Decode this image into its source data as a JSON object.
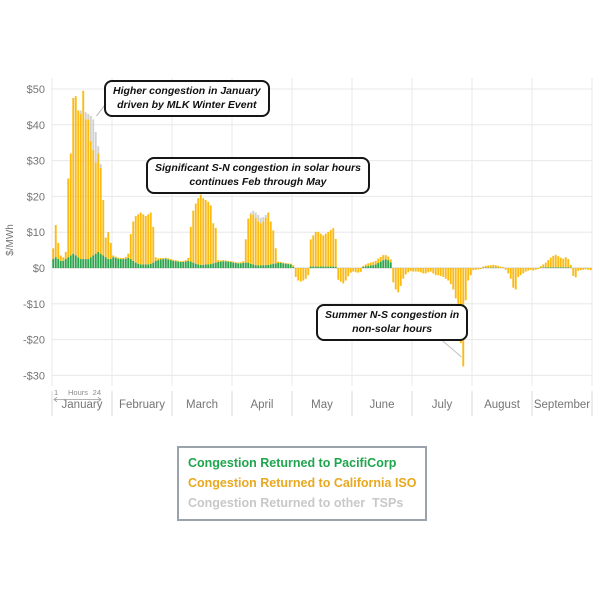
{
  "chart_data": {
    "type": "bar",
    "stacked": true,
    "title": "",
    "ylabel": "$/MWh",
    "ylim": [
      -30,
      50
    ],
    "grid": true,
    "y_ticks": [
      {
        "label": "$50",
        "value": 50
      },
      {
        "label": "$40",
        "value": 40
      },
      {
        "label": "$30",
        "value": 30
      },
      {
        "label": "$20",
        "value": 20
      },
      {
        "label": "$10",
        "value": 10
      },
      {
        "label": "$0",
        "value": 0
      },
      {
        "label": "-$10",
        "value": -10
      },
      {
        "label": "-$20",
        "value": -20
      },
      {
        "label": "-$30",
        "value": -30
      }
    ],
    "categories": [
      "January",
      "February",
      "March",
      "April",
      "May",
      "June",
      "July",
      "August",
      "September"
    ],
    "x_within_month": {
      "start_label": "1",
      "axis_label": "Hours",
      "end_label": "24",
      "bars_per_month": 24
    },
    "series_names": [
      "Congestion Returned to PacifiCorp",
      "Congestion Returned to California ISO",
      "Congestion Returned to other TSPs"
    ],
    "series_order_note": "each bar triple is [pacificorp, california_iso, other_tsps] in $/MWh; california_iso may be negative",
    "colors": {
      "pacificorp": "#2EA44C",
      "california_iso": "#FBBB13",
      "other_tsps": "#D1D0CE"
    },
    "bars": {
      "January": [
        [
          2.5,
          3,
          0
        ],
        [
          3,
          9,
          0
        ],
        [
          2.5,
          4.5,
          0
        ],
        [
          2,
          1.5,
          0
        ],
        [
          2,
          1,
          0
        ],
        [
          2.5,
          2,
          0
        ],
        [
          3,
          22,
          0
        ],
        [
          3.5,
          28.5,
          0
        ],
        [
          4,
          43.5,
          0
        ],
        [
          3.5,
          44.5,
          0
        ],
        [
          3,
          41,
          0
        ],
        [
          2.5,
          40.5,
          1
        ],
        [
          2.5,
          47,
          0
        ],
        [
          2.5,
          39,
          2
        ],
        [
          2.5,
          39,
          1.5
        ],
        [
          3,
          32.5,
          7
        ],
        [
          3.5,
          29.5,
          8.5
        ],
        [
          4,
          25.5,
          8.5
        ],
        [
          4.5,
          27.5,
          2
        ],
        [
          4,
          24,
          1
        ],
        [
          3.5,
          15.5,
          0
        ],
        [
          3,
          5.5,
          0
        ],
        [
          2.5,
          7.5,
          0
        ],
        [
          2.5,
          4.5,
          0
        ]
      ],
      "February": [
        [
          3,
          0.5,
          0
        ],
        [
          2.8,
          0.4,
          0
        ],
        [
          2.6,
          0.3,
          0
        ],
        [
          2.5,
          0.3,
          0
        ],
        [
          2.5,
          0.3,
          0
        ],
        [
          2.6,
          0.5,
          0
        ],
        [
          2.8,
          1.2,
          0
        ],
        [
          2.5,
          7,
          0
        ],
        [
          2,
          11,
          0
        ],
        [
          1.5,
          13,
          0
        ],
        [
          1.2,
          13.8,
          0
        ],
        [
          1,
          14.5,
          0
        ],
        [
          1,
          14,
          0
        ],
        [
          1,
          13.5,
          0
        ],
        [
          1,
          14,
          0
        ],
        [
          1.2,
          14.3,
          0
        ],
        [
          1.5,
          10,
          0
        ],
        [
          2,
          1,
          0
        ],
        [
          2.2,
          0.5,
          0
        ],
        [
          2.4,
          0.4,
          0
        ],
        [
          2.5,
          0.3,
          0
        ],
        [
          2.6,
          0.3,
          0
        ],
        [
          2.4,
          0.3,
          0
        ],
        [
          2.2,
          0.3,
          0
        ]
      ],
      "March": [
        [
          2,
          0.3,
          0
        ],
        [
          1.9,
          0.3,
          0
        ],
        [
          1.8,
          0.2,
          0
        ],
        [
          1.7,
          0.2,
          0
        ],
        [
          1.7,
          0.3,
          0
        ],
        [
          1.8,
          0.4,
          0
        ],
        [
          2,
          0.8,
          0
        ],
        [
          1.8,
          9.7,
          0
        ],
        [
          1.5,
          14.5,
          0
        ],
        [
          1.2,
          16.8,
          0
        ],
        [
          1,
          18.5,
          0
        ],
        [
          0.9,
          19.6,
          0
        ],
        [
          0.9,
          18.6,
          0
        ],
        [
          1,
          18,
          0
        ],
        [
          1,
          17.5,
          0
        ],
        [
          1.1,
          16.4,
          0
        ],
        [
          1.3,
          11.2,
          0
        ],
        [
          1.5,
          9.7,
          0
        ],
        [
          1.7,
          0.5,
          0
        ],
        [
          1.8,
          0.3,
          0
        ],
        [
          1.9,
          0.3,
          0
        ],
        [
          1.9,
          0.2,
          0
        ],
        [
          1.8,
          0.2,
          0
        ],
        [
          1.7,
          0.2,
          0
        ]
      ],
      "April": [
        [
          1.5,
          0.3,
          0
        ],
        [
          1.4,
          0.2,
          0
        ],
        [
          1.3,
          0.2,
          0
        ],
        [
          1.3,
          0.3,
          0
        ],
        [
          1.4,
          0.5,
          0
        ],
        [
          1.5,
          6.5,
          0
        ],
        [
          1.5,
          12.3,
          0
        ],
        [
          1.2,
          13.8,
          0.5
        ],
        [
          1,
          14,
          1
        ],
        [
          0.8,
          13.2,
          1.5
        ],
        [
          0.7,
          12.3,
          1.8
        ],
        [
          0.7,
          11.8,
          1.5
        ],
        [
          0.8,
          12.2,
          1.2
        ],
        [
          0.8,
          13.2,
          0.8
        ],
        [
          0.9,
          14.6,
          0
        ],
        [
          1,
          12,
          0
        ],
        [
          1.2,
          9.3,
          0
        ],
        [
          1.3,
          4.2,
          0
        ],
        [
          1.4,
          0.4,
          0
        ],
        [
          1.4,
          0.3,
          0
        ],
        [
          1.3,
          0.2,
          0
        ],
        [
          1.2,
          0.2,
          0
        ],
        [
          1.1,
          0.2,
          0
        ],
        [
          1,
          0.2,
          0
        ]
      ],
      "May": [
        [
          0.3,
          0.5,
          0
        ],
        [
          0,
          -2.5,
          0
        ],
        [
          0,
          -3.5,
          0
        ],
        [
          0,
          -3.8,
          0
        ],
        [
          0,
          -3.5,
          0
        ],
        [
          0,
          -3,
          0
        ],
        [
          0,
          -2,
          0
        ],
        [
          0.4,
          7.6,
          0
        ],
        [
          0.4,
          8.7,
          0
        ],
        [
          0.4,
          9.7,
          0
        ],
        [
          0.4,
          9.7,
          0
        ],
        [
          0.4,
          9.2,
          0
        ],
        [
          0.4,
          8.7,
          0
        ],
        [
          0.4,
          9.2,
          0
        ],
        [
          0.4,
          9.7,
          0
        ],
        [
          0.4,
          10.2,
          0
        ],
        [
          0.4,
          10.7,
          0
        ],
        [
          0.3,
          7.8,
          0
        ],
        [
          0,
          -3.3,
          0
        ],
        [
          0,
          -3.8,
          0
        ],
        [
          0,
          -4.3,
          0
        ],
        [
          0,
          -3.5,
          0
        ],
        [
          0,
          -2.3,
          0
        ],
        [
          0,
          -1.3,
          0
        ]
      ],
      "June": [
        [
          0,
          -1,
          0
        ],
        [
          0,
          -1.2,
          0
        ],
        [
          0,
          -1.3,
          0
        ],
        [
          0,
          -1.1,
          0
        ],
        [
          0.3,
          0.3,
          0
        ],
        [
          0.5,
          0.5,
          0
        ],
        [
          0.6,
          0.7,
          0
        ],
        [
          0.7,
          0.8,
          0
        ],
        [
          0.8,
          0.9,
          0
        ],
        [
          1,
          1,
          0
        ],
        [
          1.4,
          1.2,
          0
        ],
        [
          1.8,
          1.3,
          0
        ],
        [
          2.2,
          1.4,
          0
        ],
        [
          2.4,
          1.2,
          0
        ],
        [
          2.2,
          1,
          0
        ],
        [
          1.6,
          0.8,
          0
        ],
        [
          0,
          -4,
          0
        ],
        [
          0,
          -6,
          0
        ],
        [
          0,
          -6.8,
          0
        ],
        [
          0,
          -5,
          0
        ],
        [
          0,
          -3,
          0
        ],
        [
          0,
          -1.8,
          0
        ],
        [
          0,
          -1.2,
          0
        ],
        [
          0,
          -0.8,
          0
        ]
      ],
      "July": [
        [
          0,
          -1,
          0
        ],
        [
          0,
          -1,
          0
        ],
        [
          0,
          -1,
          0
        ],
        [
          0,
          -1.2,
          0
        ],
        [
          0,
          -1.5,
          0
        ],
        [
          0,
          -1.5,
          0
        ],
        [
          0,
          -1.2,
          0
        ],
        [
          0,
          -1,
          0
        ],
        [
          0,
          -1.5,
          0
        ],
        [
          0,
          -2,
          0
        ],
        [
          0,
          -2,
          0
        ],
        [
          0,
          -2.2,
          0
        ],
        [
          0,
          -2.5,
          0
        ],
        [
          0,
          -3,
          0
        ],
        [
          0,
          -3.5,
          0
        ],
        [
          0,
          -4.5,
          0
        ],
        [
          0,
          -6,
          0
        ],
        [
          0,
          -8.5,
          0
        ],
        [
          0,
          -11.5,
          0
        ],
        [
          0,
          -21,
          0
        ],
        [
          0,
          -27.5,
          0
        ],
        [
          0,
          -9,
          0
        ],
        [
          0,
          -3.5,
          0
        ],
        [
          0,
          -2,
          0
        ]
      ],
      "August": [
        [
          0,
          -0.6,
          0
        ],
        [
          0,
          -0.5,
          0
        ],
        [
          0,
          -0.4,
          0
        ],
        [
          0,
          -0.3,
          0
        ],
        [
          0.1,
          0.3,
          0
        ],
        [
          0.1,
          0.5,
          0
        ],
        [
          0.1,
          0.6,
          0
        ],
        [
          0.1,
          0.7,
          0
        ],
        [
          0.1,
          0.8,
          0
        ],
        [
          0.1,
          0.7,
          0
        ],
        [
          0.1,
          0.5,
          0
        ],
        [
          0,
          0.4,
          0
        ],
        [
          0,
          0.3,
          0
        ],
        [
          0,
          -0.5,
          0
        ],
        [
          0,
          -1.5,
          0
        ],
        [
          0,
          -3,
          0
        ],
        [
          0,
          -5.5,
          0
        ],
        [
          0,
          -6,
          0
        ],
        [
          0,
          -2.5,
          0
        ],
        [
          0,
          -2,
          0
        ],
        [
          0,
          -1.5,
          0
        ],
        [
          0,
          -1,
          0
        ],
        [
          0,
          -0.7,
          0
        ],
        [
          0,
          -0.5,
          0
        ]
      ],
      "September": [
        [
          0,
          -0.7,
          0
        ],
        [
          0,
          -0.5,
          0
        ],
        [
          0,
          -0.3,
          0
        ],
        [
          0.1,
          0.4,
          0
        ],
        [
          0.1,
          0.9,
          0
        ],
        [
          0.2,
          1.3,
          0
        ],
        [
          0.2,
          2,
          0
        ],
        [
          0.2,
          2.7,
          0
        ],
        [
          0.2,
          3.2,
          0
        ],
        [
          0.2,
          3.5,
          0
        ],
        [
          0.2,
          3.1,
          0
        ],
        [
          0.2,
          2.7,
          0
        ],
        [
          0.2,
          2.4,
          0
        ],
        [
          0.2,
          2.8,
          0
        ],
        [
          0.2,
          2.3,
          0
        ],
        [
          0.1,
          0.8,
          0
        ],
        [
          0,
          -2.2,
          0
        ],
        [
          0,
          -2.6,
          0
        ],
        [
          0,
          -0.8,
          0
        ],
        [
          0,
          -0.6,
          0
        ],
        [
          0,
          -0.5,
          0
        ],
        [
          0,
          -0.4,
          0
        ],
        [
          0,
          -0.5,
          0
        ],
        [
          0,
          -0.6,
          0
        ]
      ]
    }
  },
  "annotations": [
    {
      "text": "Higher congestion in January\ndriven by MLK Winter Event"
    },
    {
      "text": "Significant S-N congestion in solar hours\ncontinues Feb through May"
    },
    {
      "text": "Summer N-S congestion in\nnon-solar hours"
    }
  ],
  "legend": {
    "items": [
      {
        "label": "Congestion Returned to PacifiCorp",
        "color": "#1FA54E"
      },
      {
        "label": "Congestion Returned to California ISO",
        "color": "#E9A820"
      },
      {
        "label": "Congestion Returned to other  TSPs",
        "color": "#C8C8C8"
      }
    ]
  }
}
